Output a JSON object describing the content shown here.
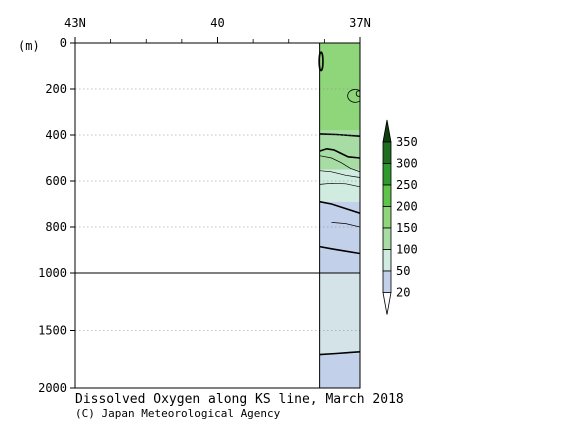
{
  "chart_data": {
    "type": "section-contour",
    "title": "Dissolved Oxygen along KS line, March 2018",
    "credit": "(C) Japan Meteorological Agency",
    "x_axis": {
      "range": [
        43,
        37
      ],
      "ticks": [
        {
          "value": 43,
          "label": "43N"
        },
        {
          "value": 40,
          "label": "40"
        },
        {
          "value": 37,
          "label": "37N"
        }
      ],
      "minor_ticks": [
        42.25,
        41.5,
        40.75,
        39.25,
        38.5,
        37.75
      ]
    },
    "y_axis": {
      "unit_label": "(m)",
      "upper_range": [
        0,
        1000
      ],
      "lower_range": [
        1000,
        2000
      ],
      "ticks": [
        {
          "value": 0,
          "label": "0"
        },
        {
          "value": 200,
          "label": "200"
        },
        {
          "value": 400,
          "label": "400"
        },
        {
          "value": 600,
          "label": "600"
        },
        {
          "value": 800,
          "label": "800"
        },
        {
          "value": 1000,
          "label": "1000"
        },
        {
          "value": 1500,
          "label": "1500"
        },
        {
          "value": 2000,
          "label": "2000"
        }
      ],
      "gridlines": [
        200,
        400,
        600,
        800,
        1500
      ]
    },
    "data_lat_range": [
      37.85,
      37
    ],
    "color_bands": [
      {
        "top": 0,
        "bottom": 380,
        "color": "#8fd67a"
      },
      {
        "top": 380,
        "bottom": 550,
        "color": "#a8dca5"
      },
      {
        "top": 550,
        "bottom": 690,
        "color": "#d0ece0"
      },
      {
        "top": 690,
        "bottom": 1000,
        "color": "#c3d0ea"
      },
      {
        "top": 1000,
        "bottom": 1700,
        "color": "#d3e3e8"
      },
      {
        "top": 1700,
        "bottom": 2000,
        "color": "#c3d0ea"
      }
    ],
    "contours": [
      {
        "value": 200,
        "points": [
          [
            37.85,
            395
          ],
          [
            37.5,
            398
          ],
          [
            37.0,
            405
          ]
        ],
        "bold": true
      },
      {
        "value": 200,
        "points": [
          [
            37.85,
            470
          ],
          [
            37.7,
            460
          ],
          [
            37.55,
            465
          ],
          [
            37.4,
            480
          ],
          [
            37.25,
            495
          ],
          [
            37.0,
            500
          ]
        ],
        "bold": true
      },
      {
        "value": 150,
        "points": [
          [
            37.85,
            490
          ],
          [
            37.6,
            500
          ],
          [
            37.4,
            520
          ],
          [
            37.2,
            545
          ],
          [
            37.0,
            560
          ]
        ],
        "bold": false
      },
      {
        "value": 150,
        "points": [
          [
            37.85,
            555
          ],
          [
            37.6,
            560
          ],
          [
            37.3,
            575
          ],
          [
            37.0,
            585
          ]
        ],
        "bold": false
      },
      {
        "value": 100,
        "points": [
          [
            37.85,
            615
          ],
          [
            37.6,
            610
          ],
          [
            37.3,
            612
          ],
          [
            37.0,
            625
          ]
        ],
        "bold": false
      },
      {
        "value": 100,
        "points": [
          [
            37.85,
            690
          ],
          [
            37.6,
            700
          ],
          [
            37.3,
            720
          ],
          [
            37.0,
            740
          ]
        ],
        "bold": true
      },
      {
        "value": 50,
        "points": [
          [
            37.6,
            780
          ],
          [
            37.3,
            785
          ],
          [
            37.0,
            800
          ]
        ],
        "bold": false
      },
      {
        "value": 50,
        "points": [
          [
            37.85,
            885
          ],
          [
            37.6,
            895
          ],
          [
            37.3,
            905
          ],
          [
            37.0,
            915
          ]
        ],
        "bold": true
      },
      {
        "value": 50,
        "points": [
          [
            37.85,
            1710
          ],
          [
            37.5,
            1700
          ],
          [
            37.2,
            1690
          ],
          [
            37.0,
            1685
          ]
        ],
        "bold": true
      }
    ],
    "closed_contours": [
      {
        "center": [
          37.82,
          80
        ],
        "radii": [
          0.04,
          40
        ],
        "bold": true
      },
      {
        "center": [
          37.1,
          230
        ],
        "radii": [
          0.16,
          28
        ],
        "bold": false
      },
      {
        "center": [
          37.03,
          220
        ],
        "radii": [
          0.05,
          12
        ],
        "bold": false
      }
    ],
    "legend": {
      "levels": [
        "20",
        "50",
        "100",
        "150",
        "200",
        "250",
        "300",
        "350"
      ],
      "colors": [
        "#ffffff",
        "#c3d0ea",
        "#d0ece0",
        "#a8dca5",
        "#8fd67a",
        "#5ec44a",
        "#2e9a2e",
        "#1f6e1f",
        "#0e3d0e"
      ]
    }
  }
}
